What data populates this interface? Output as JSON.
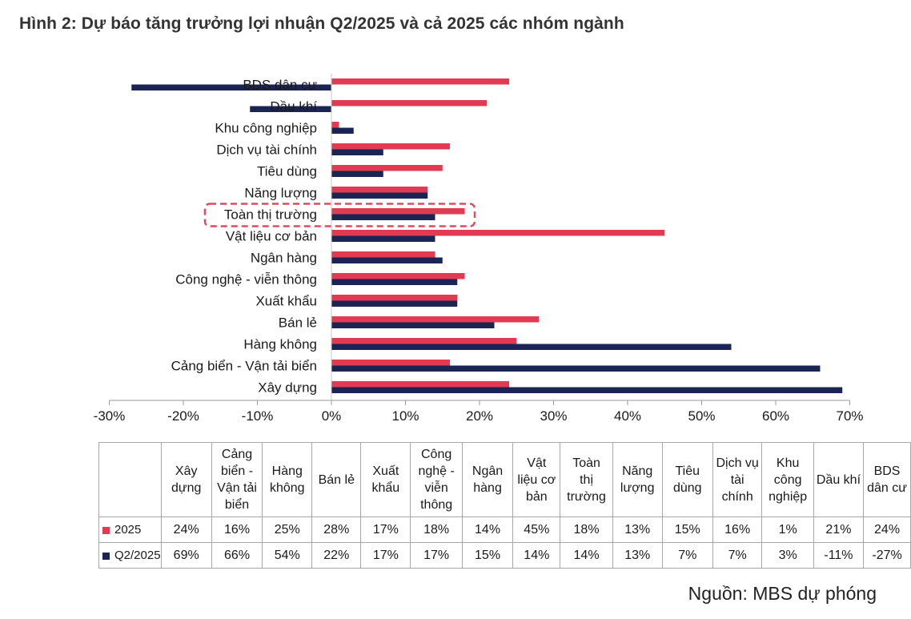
{
  "title": "Hình 2: Dự báo tăng trưởng lợi nhuận Q2/2025 và cả 2025 các nhóm ngành",
  "source": "Nguồn: MBS dự phóng",
  "colors": {
    "s2025": "#e23a52",
    "q2": "#1b2554",
    "highlight": "#e04a5e"
  },
  "chart_data": {
    "type": "bar",
    "orientation": "horizontal",
    "categories": [
      "BDS dân cư",
      "Dầu khí",
      "Khu công nghiệp",
      "Dịch vụ tài chính",
      "Tiêu dùng",
      "Năng lượng",
      "Toàn thị trường",
      "Vật liệu cơ bản",
      "Ngân hàng",
      "Công nghệ - viễn thông",
      "Xuất khẩu",
      "Bán lẻ",
      "Hàng không",
      "Cảng biển - Vận tải biển",
      "Xây dựng"
    ],
    "series": [
      {
        "name": "2025",
        "values": [
          24,
          21,
          1,
          16,
          15,
          13,
          18,
          45,
          14,
          18,
          17,
          28,
          25,
          16,
          24
        ]
      },
      {
        "name": "Q2/2025",
        "values": [
          -27,
          -11,
          3,
          7,
          7,
          13,
          14,
          14,
          15,
          17,
          17,
          22,
          54,
          66,
          69
        ]
      }
    ],
    "xlim": [
      -30,
      70
    ],
    "x_ticks": [
      "-30%",
      "-20%",
      "-10%",
      "0%",
      "10%",
      "20%",
      "30%",
      "40%",
      "50%",
      "60%",
      "70%"
    ],
    "highlighted_category": "Toàn thị trường"
  },
  "table": {
    "headers": [
      [
        "Xây",
        "dựng"
      ],
      [
        "Cảng",
        "biển -",
        "Vận tải",
        "biển"
      ],
      [
        "Hàng",
        "không"
      ],
      [
        "Bán lẻ"
      ],
      [
        "Xuất",
        "khẩu"
      ],
      [
        "Công",
        "nghệ -",
        "viễn",
        "thông"
      ],
      [
        "Ngân",
        "hàng"
      ],
      [
        "Vật",
        "liệu cơ",
        "bản"
      ],
      [
        "Toàn",
        "thị",
        "trường"
      ],
      [
        "Năng",
        "lượng"
      ],
      [
        "Tiêu",
        "dùng"
      ],
      [
        "Dịch vụ",
        "tài",
        "chính"
      ],
      [
        "Khu",
        "công",
        "nghiệp"
      ],
      [
        "Dầu khí"
      ],
      [
        "BDS",
        "dân cư"
      ]
    ],
    "rows": [
      {
        "label": "2025",
        "cells": [
          "24%",
          "16%",
          "25%",
          "28%",
          "17%",
          "18%",
          "14%",
          "45%",
          "18%",
          "13%",
          "15%",
          "16%",
          "1%",
          "21%",
          "24%"
        ]
      },
      {
        "label": "Q2/2025",
        "cells": [
          "69%",
          "66%",
          "54%",
          "22%",
          "17%",
          "17%",
          "15%",
          "14%",
          "14%",
          "13%",
          "7%",
          "7%",
          "3%",
          "-11%",
          "-27%"
        ]
      }
    ]
  }
}
